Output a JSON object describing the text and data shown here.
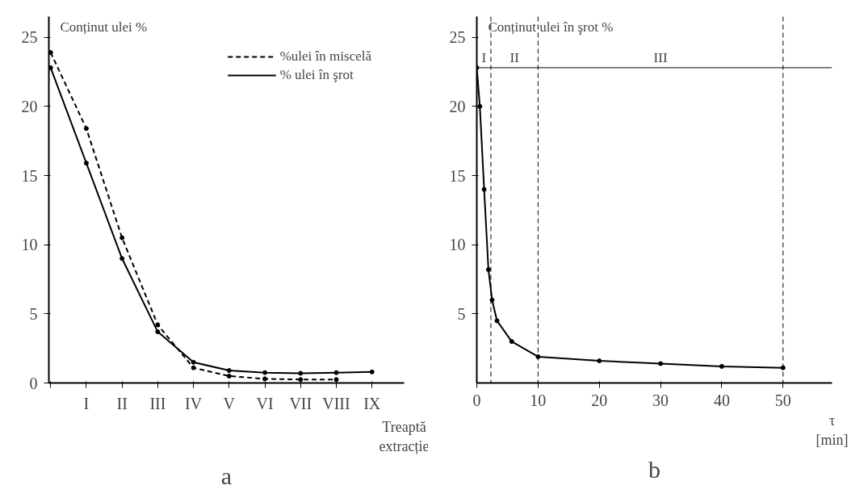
{
  "chart_data": [
    {
      "type": "line",
      "title": "a",
      "ylabel": "Conținut ulei %",
      "xlabel": "Treaptă extracție",
      "ylim": [
        0,
        26.5
      ],
      "categories": [
        null,
        "I",
        "II",
        "III",
        "IV",
        "V",
        "VI",
        "VII",
        "VIII",
        "IX"
      ],
      "yticks": [
        0,
        5,
        10,
        15,
        20,
        25
      ],
      "grid": false,
      "legend": "top right",
      "marker": "circle",
      "series": [
        {
          "name": "%ulei în miscelă",
          "color": "#000000",
          "line_style": "dashed",
          "values": [
            23.9,
            18.4,
            10.5,
            4.2,
            1.1,
            0.5,
            0.3,
            0.25,
            0.25,
            null
          ]
        },
        {
          "name": "% ulei în şrot",
          "color": "#000000",
          "line_style": "solid",
          "values": [
            22.8,
            15.9,
            9,
            3.7,
            1.5,
            0.9,
            0.75,
            0.7,
            0.75,
            0.8
          ]
        }
      ]
    },
    {
      "type": "line",
      "title": "b",
      "ylabel": "Conținut ulei în şrot %",
      "xlabel": "τ [min]",
      "xlim": [
        0,
        58
      ],
      "ylim": [
        0,
        26.5
      ],
      "xticks": [
        0,
        10,
        20,
        30,
        40,
        50
      ],
      "yticks": [
        5,
        10,
        15,
        20,
        25
      ],
      "grid": false,
      "marker": "circle",
      "series": [
        {
          "color": "#000000",
          "line_style": "solid",
          "x": [
            0,
            0.5,
            1.2,
            1.9,
            2.5,
            3.3,
            5.7,
            10,
            20,
            30,
            40,
            50
          ],
          "values": [
            22.8,
            20,
            14,
            8.2,
            6,
            4.5,
            3.0,
            1.9,
            1.6,
            1.4,
            1.2,
            1.1
          ]
        }
      ],
      "ref_lines": [
        {
          "axis": "x",
          "value": 2.3,
          "line_style": "dashed"
        },
        {
          "axis": "x",
          "value": 10,
          "line_style": "dashed"
        },
        {
          "axis": "x",
          "value": 50,
          "line_style": "dashed"
        },
        {
          "axis": "y",
          "value": 22.8,
          "line_style": "solid"
        }
      ],
      "annotations": [
        "I",
        "II",
        "III"
      ]
    }
  ]
}
